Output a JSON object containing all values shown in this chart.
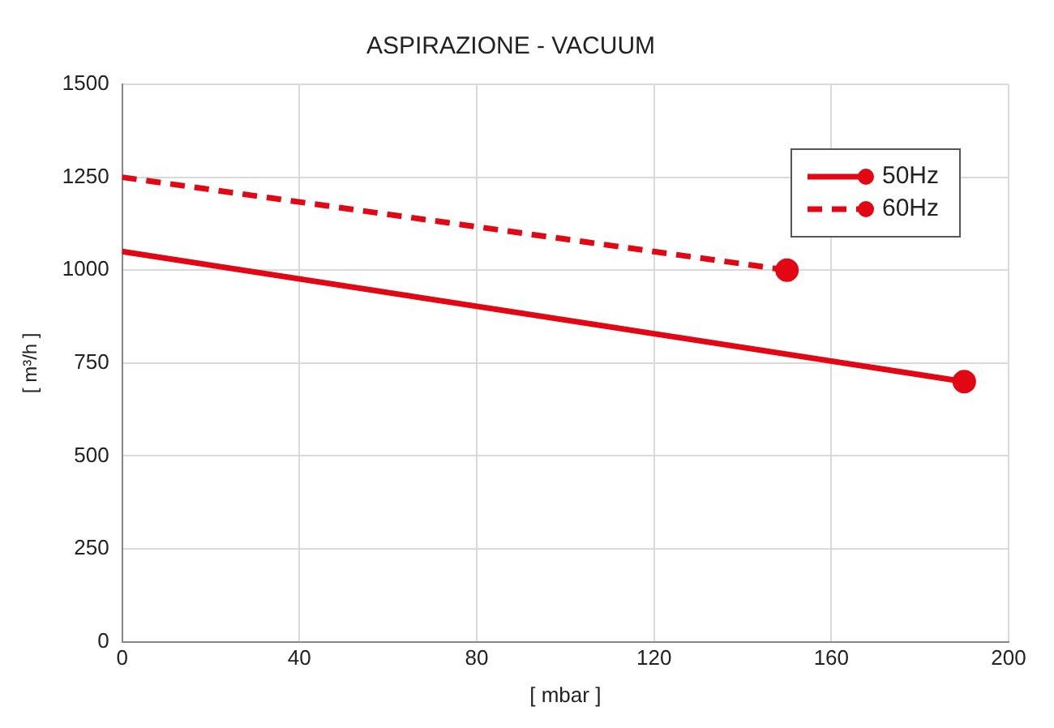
{
  "chart_data": {
    "type": "line",
    "title": "ASPIRAZIONE - VACUUM",
    "xlabel": "[ mbar ]",
    "ylabel": "[ m³/h ]",
    "xlim": [
      0,
      200
    ],
    "xticks": [
      0,
      40,
      80,
      120,
      160,
      200
    ],
    "ylim": [
      0,
      1500
    ],
    "yticks": [
      0,
      250,
      500,
      750,
      1000,
      1250,
      1500
    ],
    "grid": true,
    "legend": "top right",
    "marker": "circle",
    "series": [
      {
        "name": "50Hz",
        "color": "#e30613",
        "x": [
          0,
          190
        ],
        "values": [
          1050,
          700
        ],
        "line_style": "solid"
      },
      {
        "name": "60Hz",
        "color": "#e30613",
        "x": [
          0,
          150
        ],
        "values": [
          1250,
          1000
        ],
        "line_style": "dashed"
      }
    ]
  }
}
